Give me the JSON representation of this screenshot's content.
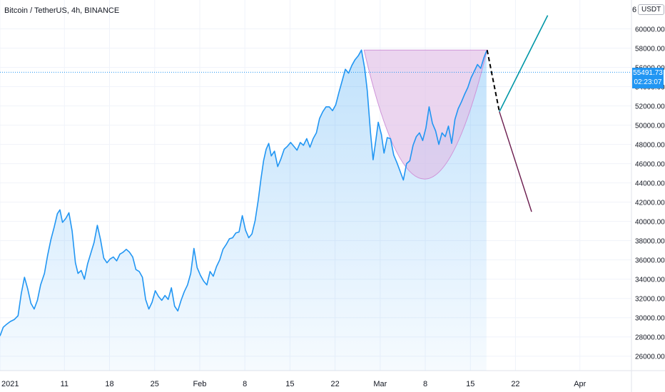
{
  "header": {
    "title": "Bitcoin / TetherUS, 4h, BINANCE",
    "currency": "USDT",
    "cutoff_tick": "6"
  },
  "last_price": {
    "value": "55491.73",
    "countdown": "02:23:07",
    "numeric": 55491.73
  },
  "colors": {
    "line": "#2196f3",
    "cup": "#e1bee7",
    "up_projection": "#0097a7",
    "down_projection": "#6a1b4d",
    "dashed": "#000000"
  },
  "chart_data": {
    "type": "area",
    "ylim": [
      24500,
      63000
    ],
    "y_ticks": [
      "26000.00",
      "28000.00",
      "30000.00",
      "32000.00",
      "34000.00",
      "36000.00",
      "38000.00",
      "40000.00",
      "42000.00",
      "44000.00",
      "46000.00",
      "48000.00",
      "50000.00",
      "52000.00",
      "54000.00",
      "56000.00",
      "58000.00",
      "60000.00"
    ],
    "x_ticks": [
      "2021",
      "11",
      "18",
      "25",
      "Feb",
      "8",
      "15",
      "22",
      "Mar",
      "8",
      "15",
      "22",
      "Apr"
    ],
    "x_tick_days": [
      0,
      10,
      17,
      24,
      31,
      38,
      45,
      52,
      59,
      66,
      73,
      80,
      90
    ],
    "xlim_days": [
      0,
      98
    ],
    "series": [
      {
        "points": [
          [
            0,
            28100
          ],
          [
            0.5,
            29000
          ],
          [
            1,
            29300
          ],
          [
            1.6,
            29600
          ],
          [
            2.2,
            29800
          ],
          [
            2.8,
            30200
          ],
          [
            3.3,
            32500
          ],
          [
            3.8,
            34200
          ],
          [
            4.3,
            33000
          ],
          [
            4.8,
            31500
          ],
          [
            5.3,
            30900
          ],
          [
            5.8,
            31800
          ],
          [
            6.3,
            33400
          ],
          [
            6.9,
            34600
          ],
          [
            7.4,
            36500
          ],
          [
            7.9,
            38100
          ],
          [
            8.4,
            39400
          ],
          [
            8.9,
            40800
          ],
          [
            9.3,
            41200
          ],
          [
            9.7,
            39900
          ],
          [
            10.2,
            40300
          ],
          [
            10.7,
            40900
          ],
          [
            11.2,
            39000
          ],
          [
            11.7,
            35700
          ],
          [
            12.1,
            34600
          ],
          [
            12.6,
            34900
          ],
          [
            13.1,
            34000
          ],
          [
            13.6,
            35600
          ],
          [
            14.1,
            36700
          ],
          [
            14.6,
            37800
          ],
          [
            15.1,
            39600
          ],
          [
            15.6,
            38100
          ],
          [
            16.1,
            36200
          ],
          [
            16.6,
            35700
          ],
          [
            17.1,
            36100
          ],
          [
            17.6,
            36300
          ],
          [
            18.1,
            35900
          ],
          [
            18.6,
            36600
          ],
          [
            19.1,
            36800
          ],
          [
            19.6,
            37100
          ],
          [
            20.1,
            36800
          ],
          [
            20.6,
            36300
          ],
          [
            21.1,
            35000
          ],
          [
            21.6,
            34800
          ],
          [
            22.1,
            34200
          ],
          [
            22.6,
            31900
          ],
          [
            23.1,
            30900
          ],
          [
            23.6,
            31600
          ],
          [
            24.1,
            32800
          ],
          [
            24.6,
            32200
          ],
          [
            25.1,
            31800
          ],
          [
            25.6,
            32300
          ],
          [
            26.1,
            31900
          ],
          [
            26.6,
            33100
          ],
          [
            27.1,
            31200
          ],
          [
            27.6,
            30700
          ],
          [
            28.1,
            31800
          ],
          [
            28.6,
            32700
          ],
          [
            29.1,
            33400
          ],
          [
            29.6,
            34600
          ],
          [
            30.1,
            37200
          ],
          [
            30.6,
            35200
          ],
          [
            31.1,
            34400
          ],
          [
            31.6,
            33800
          ],
          [
            32.1,
            33400
          ],
          [
            32.6,
            34800
          ],
          [
            33.1,
            34300
          ],
          [
            33.6,
            35300
          ],
          [
            34.1,
            36000
          ],
          [
            34.6,
            37100
          ],
          [
            35.1,
            37600
          ],
          [
            35.6,
            38200
          ],
          [
            36.1,
            38300
          ],
          [
            36.6,
            38800
          ],
          [
            37.1,
            38900
          ],
          [
            37.6,
            40600
          ],
          [
            38.1,
            39100
          ],
          [
            38.6,
            38300
          ],
          [
            39.1,
            38700
          ],
          [
            39.6,
            40100
          ],
          [
            40.1,
            42300
          ],
          [
            40.5,
            44400
          ],
          [
            40.9,
            46300
          ],
          [
            41.3,
            47500
          ],
          [
            41.7,
            48100
          ],
          [
            42.1,
            46800
          ],
          [
            42.6,
            47300
          ],
          [
            43.1,
            45700
          ],
          [
            43.6,
            46500
          ],
          [
            44.1,
            47500
          ],
          [
            44.6,
            47800
          ],
          [
            45.1,
            48200
          ],
          [
            45.6,
            47800
          ],
          [
            46.1,
            47400
          ],
          [
            46.6,
            48200
          ],
          [
            47.1,
            47900
          ],
          [
            47.6,
            48600
          ],
          [
            48.1,
            47700
          ],
          [
            48.6,
            48600
          ],
          [
            49.1,
            49200
          ],
          [
            49.6,
            50700
          ],
          [
            50.1,
            51400
          ],
          [
            50.6,
            51900
          ],
          [
            51.1,
            51900
          ],
          [
            51.6,
            51500
          ],
          [
            52.1,
            52100
          ],
          [
            52.6,
            53400
          ],
          [
            53.1,
            54600
          ],
          [
            53.6,
            55800
          ],
          [
            54.1,
            55400
          ],
          [
            54.6,
            56200
          ],
          [
            55.1,
            56800
          ],
          [
            55.6,
            57200
          ],
          [
            56.1,
            57800
          ],
          [
            56.6,
            55900
          ],
          [
            57.0,
            53600
          ],
          [
            57.5,
            49200
          ],
          [
            57.9,
            46400
          ],
          [
            58.3,
            48300
          ],
          [
            58.7,
            50300
          ],
          [
            59.2,
            49000
          ],
          [
            59.6,
            47100
          ],
          [
            60.1,
            48700
          ],
          [
            60.6,
            48600
          ],
          [
            61.1,
            46900
          ],
          [
            61.6,
            46100
          ],
          [
            62.1,
            45200
          ],
          [
            62.6,
            44300
          ],
          [
            63.1,
            46000
          ],
          [
            63.6,
            46300
          ],
          [
            64.1,
            47900
          ],
          [
            64.6,
            48800
          ],
          [
            65.1,
            49200
          ],
          [
            65.6,
            48400
          ],
          [
            66.1,
            49700
          ],
          [
            66.6,
            51900
          ],
          [
            67.1,
            50200
          ],
          [
            67.6,
            49400
          ],
          [
            68.1,
            48000
          ],
          [
            68.6,
            49200
          ],
          [
            69.1,
            48800
          ],
          [
            69.6,
            49900
          ],
          [
            70.1,
            48100
          ],
          [
            70.6,
            50600
          ],
          [
            71.1,
            51700
          ],
          [
            71.6,
            52400
          ],
          [
            72.1,
            53200
          ],
          [
            72.6,
            53900
          ],
          [
            73.1,
            54900
          ],
          [
            73.6,
            55600
          ],
          [
            74.1,
            56300
          ],
          [
            74.6,
            55900
          ],
          [
            75.1,
            57000
          ],
          [
            75.5,
            57700
          ]
        ]
      }
    ],
    "annotations": {
      "cup": {
        "start": [
          56.5,
          57800
        ],
        "end": [
          75.6,
          57800
        ],
        "bottom": [
          65.9,
          44400
        ]
      },
      "dashed_line": {
        "from": [
          75.6,
          57800
        ],
        "to": [
          77.5,
          51400
        ]
      },
      "projection_up": {
        "from": [
          77.5,
          51400
        ],
        "to": [
          85.0,
          61400
        ]
      },
      "projection_down": {
        "from": [
          77.5,
          51400
        ],
        "to": [
          82.5,
          41000
        ]
      }
    }
  }
}
